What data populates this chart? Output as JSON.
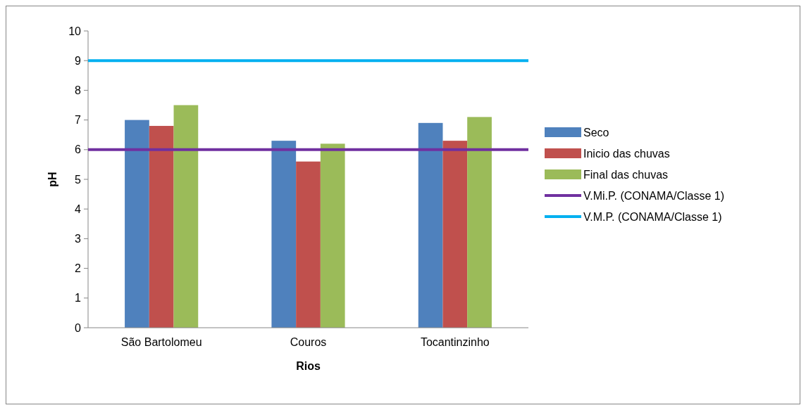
{
  "chart_data": {
    "type": "bar",
    "xlabel": "Rios",
    "ylabel": "pH",
    "categories": [
      "São Bartolomeu",
      "Couros",
      "Tocantinzinho"
    ],
    "series": [
      {
        "name": "Seco",
        "color": "#4f81bd",
        "values": [
          7.0,
          6.3,
          6.9
        ]
      },
      {
        "name": "Inicio das chuvas",
        "color": "#c0504d",
        "values": [
          6.8,
          5.6,
          6.3
        ]
      },
      {
        "name": "Final das chuvas",
        "color": "#9bbb59",
        "values": [
          7.5,
          6.2,
          7.1
        ]
      }
    ],
    "ref_lines": [
      {
        "axis": "y",
        "value": 6,
        "label": "V.Mi.P. (CONAMA/Classe 1)",
        "color": "#7030a0"
      },
      {
        "axis": "y",
        "value": 9,
        "label": "V.M.P. (CONAMA/Classe 1)",
        "color": "#00b0f0"
      }
    ],
    "ylim": [
      0,
      10
    ],
    "yticks": [
      0,
      1,
      2,
      3,
      4,
      5,
      6,
      7,
      8,
      9,
      10
    ],
    "legend": "right"
  }
}
